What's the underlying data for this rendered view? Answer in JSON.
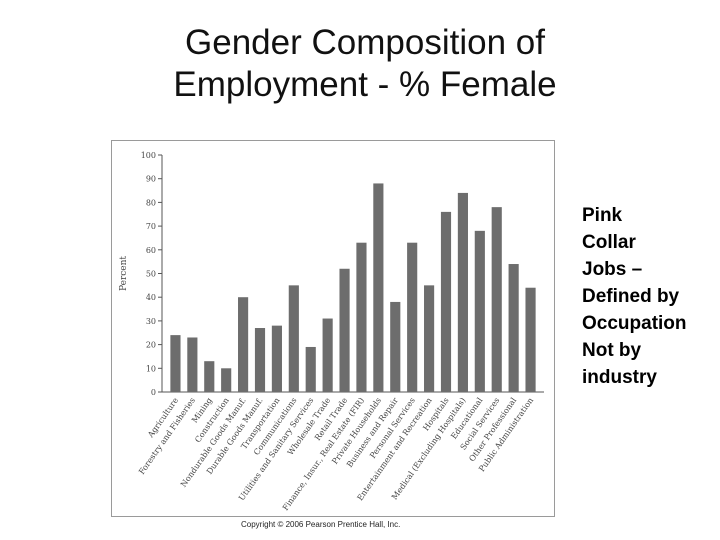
{
  "slide": {
    "title_line1": "Gender Composition of",
    "title_line2": "Employment - % Female",
    "note_lines": [
      "Pink",
      "Collar",
      "Jobs –",
      "Defined by",
      "Occupation",
      "Not by",
      "industry"
    ],
    "copyright": "Copyright © 2006 Pearson Prentice Hall, Inc."
  },
  "chart_data": {
    "type": "bar",
    "title": "",
    "xlabel": "",
    "ylabel": "Percent",
    "ylim": [
      0,
      100
    ],
    "yticks": [
      0,
      10,
      20,
      30,
      40,
      50,
      60,
      70,
      80,
      90,
      100
    ],
    "grid": false,
    "bar_color": "#6d6d6d",
    "categories": [
      "Agriculture",
      "Forestry and Fisheries",
      "Mining",
      "Construction",
      "Nondurable Goods Manuf.",
      "Durable Goods Manuf.",
      "Transportation",
      "Communications",
      "Utilities and Sanitary Services",
      "Wholesale Trade",
      "Retail Trade",
      "Finance, Insur., Real Estate (FIR)",
      "Private Households",
      "Business and Repair",
      "Personal Services",
      "Entertainment and Recreation",
      "Hospitals",
      "Medical (Excluding Hospitals)",
      "Educational",
      "Social Services",
      "Other Professional",
      "Public Administration"
    ],
    "values": [
      24,
      23,
      13,
      10,
      40,
      27,
      28,
      45,
      19,
      31,
      52,
      63,
      88,
      38,
      63,
      45,
      76,
      84,
      68,
      78,
      54,
      44
    ]
  }
}
